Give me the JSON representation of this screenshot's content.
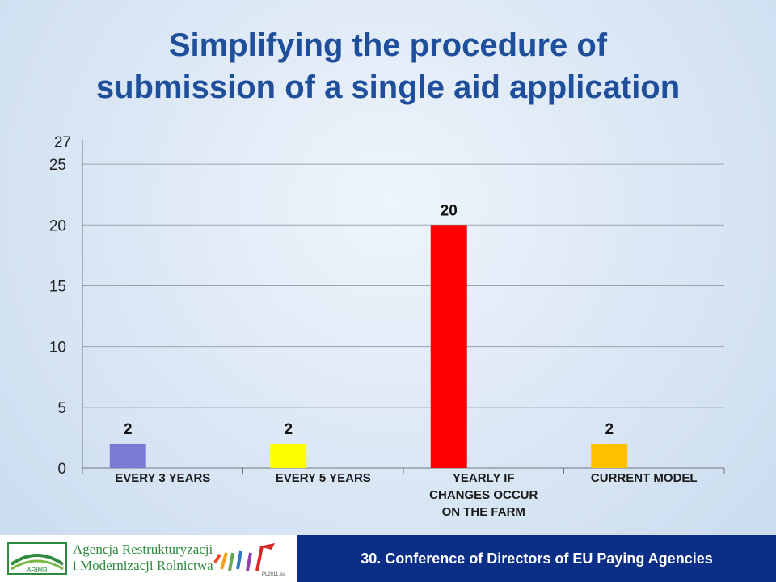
{
  "title_lines": [
    "Simplifying the procedure of",
    "submission of a single aid application"
  ],
  "chart_data": {
    "type": "bar",
    "categories": [
      [
        "EVERY 3 YEARS"
      ],
      [
        "EVERY 5 YEARS"
      ],
      [
        "YEARLY IF",
        "CHANGES OCCUR",
        "ON THE FARM"
      ],
      [
        "CURRENT MODEL"
      ]
    ],
    "values": [
      2,
      2,
      20,
      2
    ],
    "colors": [
      "#7b7bd4",
      "#ffff00",
      "#ff0000",
      "#ffc000"
    ],
    "data_labels": [
      "2",
      "2",
      "20",
      "2"
    ],
    "yticks": [
      0,
      5,
      10,
      15,
      20,
      25
    ],
    "ymax_label": "27",
    "ylim": [
      0,
      27
    ],
    "grid": true
  },
  "footer": {
    "agency_line1": "Agencja Restrukturyzacji",
    "agency_line2": "i Modernizacji Rolnictwa",
    "logo_text": "ARiMR",
    "small_logo_text": "PL2011.eu",
    "conference": "30. Conference of Directors of EU Paying Agencies"
  }
}
